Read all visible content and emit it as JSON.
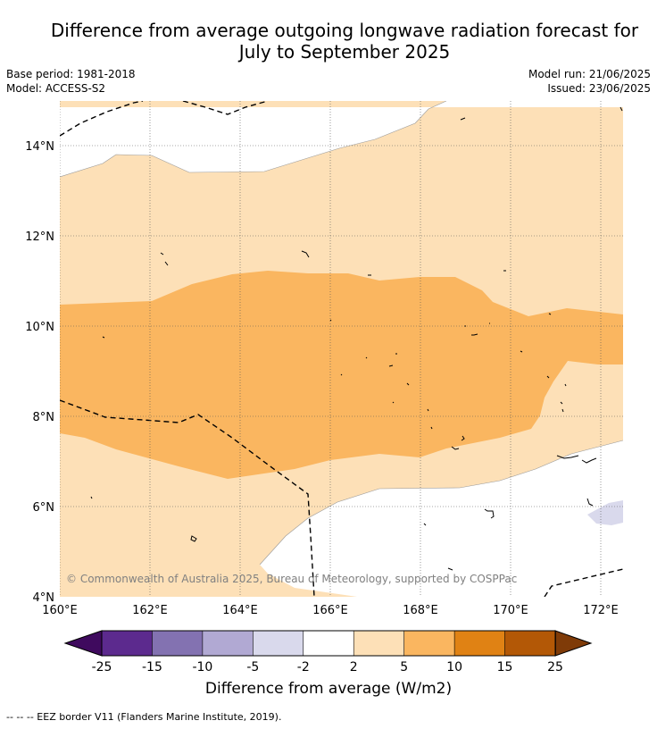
{
  "title_line1": "Difference from average outgoing longwave radiation forecast for",
  "title_line2": "July to September 2025",
  "base_period": "Base period: 1981-2018",
  "model": "Model: ACCESS-S2",
  "model_run": "Model run: 21/06/2025",
  "issued": "Issued: 23/06/2025",
  "copyright": "© Commonwealth of Australia 2025, Bureau of Meteorology, supported by COSPPac",
  "colorbar_title": "Difference from average (W/m2)",
  "footer": "--  --  -- EEZ border V11 (Flanders Marine Institute, 2019).",
  "x_ticks": [
    "160°E",
    "162°E",
    "164°E",
    "166°E",
    "168°E",
    "170°E",
    "172°E"
  ],
  "y_ticks": [
    "14°N",
    "12°N",
    "10°N",
    "8°N",
    "6°N",
    "4°N"
  ],
  "colorbar": {
    "labels": [
      "-25",
      "-15",
      "-10",
      "-5",
      "-2",
      "2",
      "5",
      "10",
      "15",
      "25"
    ],
    "colors": [
      "#3f0a5e",
      "#5c2a8e",
      "#8372b1",
      "#b1a9d3",
      "#d9d9ec",
      "#ffffff",
      "#fde0b7",
      "#fab660",
      "#e08214",
      "#b35806",
      "#7f3b08"
    ]
  },
  "legend_colors": {
    "light_orange": "#fde0b7",
    "mid_orange": "#fab660",
    "light_purple": "#d9d9ec"
  }
}
